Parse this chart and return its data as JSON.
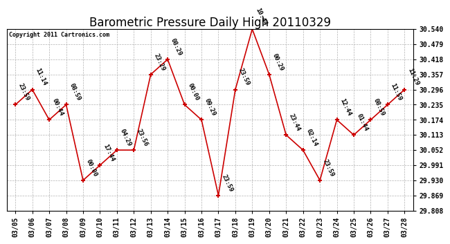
{
  "title": "Barometric Pressure Daily High 20110329",
  "copyright": "Copyright 2011 Cartronics.com",
  "dates": [
    "03/05",
    "03/06",
    "03/07",
    "03/08",
    "03/09",
    "03/10",
    "03/11",
    "03/12",
    "03/13",
    "03/14",
    "03/15",
    "03/16",
    "03/17",
    "03/18",
    "03/19",
    "03/20",
    "03/21",
    "03/22",
    "03/23",
    "03/24",
    "03/25",
    "03/26",
    "03/27",
    "03/28"
  ],
  "values": [
    30.235,
    30.296,
    30.174,
    30.235,
    29.93,
    29.991,
    30.052,
    30.052,
    30.357,
    30.418,
    30.235,
    30.174,
    29.869,
    30.296,
    30.54,
    30.357,
    30.113,
    30.052,
    29.93,
    30.174,
    30.113,
    30.174,
    30.235,
    30.296
  ],
  "times": [
    "23:59",
    "11:14",
    "00:44",
    "08:59",
    "00:00",
    "17:44",
    "04:29",
    "23:56",
    "23:29",
    "08:29",
    "00:00",
    "09:29",
    "23:59",
    "23:59",
    "10:44",
    "00:29",
    "23:44",
    "02:14",
    "23:59",
    "12:44",
    "01:44",
    "08:59",
    "11:59",
    "11:29"
  ],
  "ylim_min": 29.808,
  "ylim_max": 30.54,
  "yticks": [
    29.808,
    29.869,
    29.93,
    29.991,
    30.052,
    30.113,
    30.174,
    30.235,
    30.296,
    30.357,
    30.418,
    30.479,
    30.54
  ],
  "line_color": "#cc0000",
  "marker_color": "#cc0000",
  "bg_color": "#ffffff",
  "grid_color": "#aaaaaa",
  "title_fontsize": 12,
  "copyright_fontsize": 6,
  "tick_fontsize": 7,
  "annotation_fontsize": 6.5,
  "annotation_rotation": -65
}
